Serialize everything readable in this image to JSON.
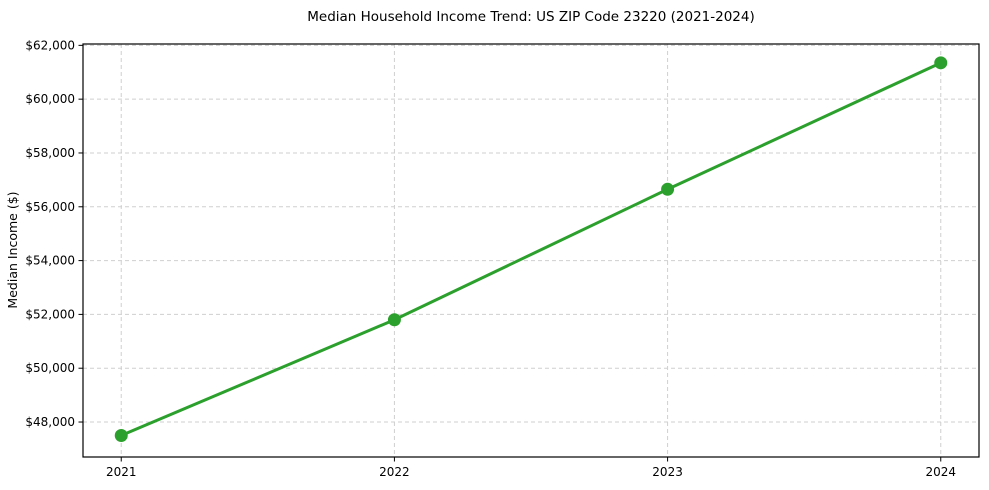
{
  "chart_data": {
    "type": "line",
    "title": "Median Household Income Trend: US ZIP Code 23220 (2021-2024)",
    "xlabel": "",
    "ylabel": "Median Income ($)",
    "x": [
      2021,
      2022,
      2023,
      2024
    ],
    "x_tick_labels": [
      "2021",
      "2022",
      "2023",
      "2024"
    ],
    "series": [
      {
        "name": "Median Household Income",
        "values": [
          47500,
          51800,
          56650,
          61350
        ],
        "color": "#2ca02c",
        "marker": "circle",
        "line_width": 3,
        "marker_radius": 6.5
      }
    ],
    "yticks": [
      48000,
      50000,
      52000,
      54000,
      56000,
      58000,
      60000,
      62000
    ],
    "ytick_labels": [
      "$48,000",
      "$50,000",
      "$52,000",
      "$54,000",
      "$56,000",
      "$58,000",
      "$60,000",
      "$62,000"
    ],
    "xlim": [
      2020.86,
      2024.14
    ],
    "ylim": [
      46700,
      62050
    ],
    "grid": {
      "visible": true,
      "style": "dashed",
      "color": "#cfcfcf"
    },
    "legend": "none",
    "frame_color": "#000000",
    "text_color": "#000000",
    "background_color": "#ffffff"
  }
}
